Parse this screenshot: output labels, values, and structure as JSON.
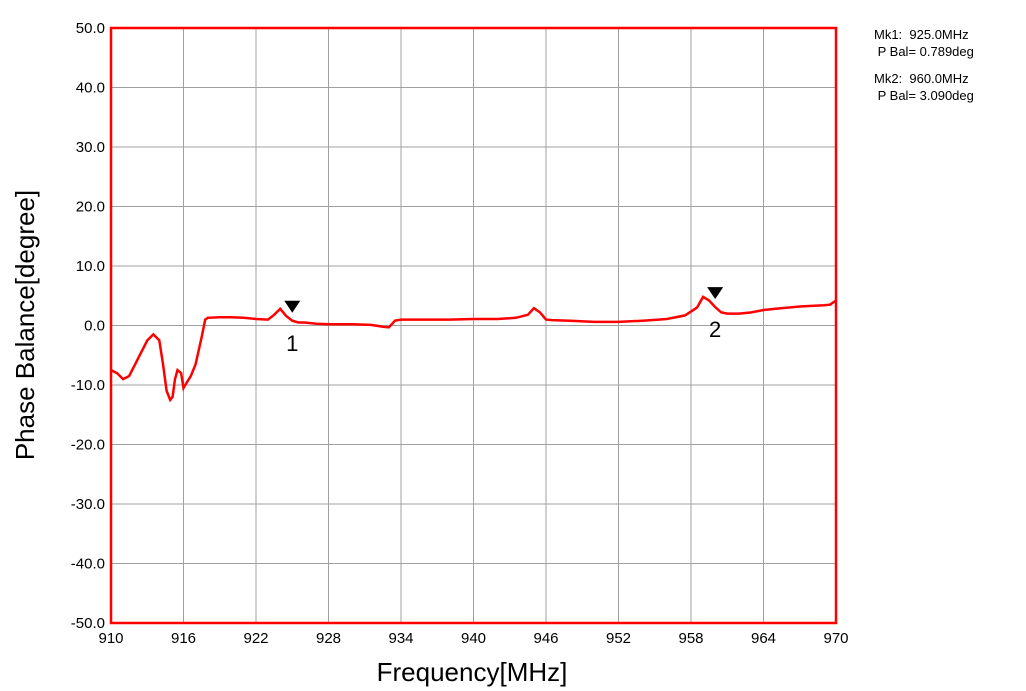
{
  "chart_data": {
    "type": "line",
    "title": "",
    "xlabel": "Frequency[MHz]",
    "ylabel": "Phase Balance[degree]",
    "xlim": [
      910,
      970
    ],
    "ylim": [
      -50,
      50
    ],
    "x_ticks": [
      910,
      916,
      922,
      928,
      934,
      940,
      946,
      952,
      958,
      964,
      970
    ],
    "x_tick_labels": [
      "910",
      "916",
      "922",
      "928",
      "934",
      "940",
      "946",
      "952",
      "958",
      "964",
      "970"
    ],
    "y_ticks": [
      50,
      40,
      30,
      20,
      10,
      0,
      -10,
      -20,
      -30,
      -40,
      -50
    ],
    "y_tick_labels": [
      "50.0",
      "40.0",
      "30.0",
      "20.0",
      "10.0",
      "0.0",
      "-10.0",
      "-20.0",
      "-30.0",
      "-40.0",
      "-50.0"
    ],
    "grid": true,
    "line_color": "#ff0000",
    "frame_color": "#ff0000",
    "series": [
      {
        "x": [
          910.0,
          910.5,
          911.0,
          911.5,
          912.0,
          912.5,
          913.0,
          913.5,
          914.0,
          914.3,
          914.6,
          914.9,
          915.1,
          915.3,
          915.5,
          915.8,
          916.0,
          916.3,
          916.6,
          917.0,
          917.5,
          917.8,
          918.0,
          919.0,
          920.0,
          921.0,
          922.0,
          923.0,
          923.5,
          924.0,
          924.5,
          925.0,
          925.5,
          926.0,
          927.0,
          928.0,
          930.0,
          931.5,
          932.5,
          933.0,
          933.5,
          934.0,
          936.0,
          938.0,
          940.0,
          942.0,
          943.5,
          944.5,
          945.0,
          945.5,
          946.0,
          946.5,
          948.0,
          950.0,
          952.0,
          954.0,
          956.0,
          957.5,
          958.5,
          959.0,
          959.5,
          960.0,
          960.5,
          961.0,
          962.0,
          963.0,
          964.0,
          965.0,
          966.0,
          967.0,
          968.0,
          969.0,
          969.5,
          970.0
        ],
        "y": [
          -7.5,
          -8.0,
          -9.0,
          -8.5,
          -6.5,
          -4.5,
          -2.5,
          -1.5,
          -2.5,
          -6.5,
          -11.0,
          -12.5,
          -12.0,
          -9.0,
          -7.5,
          -8.0,
          -10.5,
          -9.5,
          -8.5,
          -6.5,
          -2.0,
          1.0,
          1.3,
          1.4,
          1.4,
          1.3,
          1.1,
          1.0,
          1.8,
          2.8,
          1.6,
          0.8,
          0.5,
          0.5,
          0.3,
          0.2,
          0.2,
          0.1,
          -0.2,
          -0.3,
          0.8,
          1.0,
          1.0,
          1.0,
          1.1,
          1.1,
          1.3,
          1.8,
          2.9,
          2.2,
          1.0,
          0.9,
          0.8,
          0.6,
          0.6,
          0.8,
          1.1,
          1.7,
          3.0,
          4.8,
          4.2,
          3.1,
          2.2,
          2.0,
          2.0,
          2.2,
          2.6,
          2.8,
          3.0,
          3.2,
          3.3,
          3.4,
          3.5,
          4.2
        ]
      }
    ],
    "markers": [
      {
        "label": "1",
        "x": 925.0,
        "y": 0.789
      },
      {
        "label": "2",
        "x": 960.0,
        "y": 3.09
      }
    ]
  },
  "readouts": {
    "mk1_line1": "Mk1:  925.0MHz",
    "mk1_line2": " P Bal= 0.789deg",
    "mk2_line1": "Mk2:  960.0MHz",
    "mk2_line2": " P Bal= 3.090deg"
  }
}
